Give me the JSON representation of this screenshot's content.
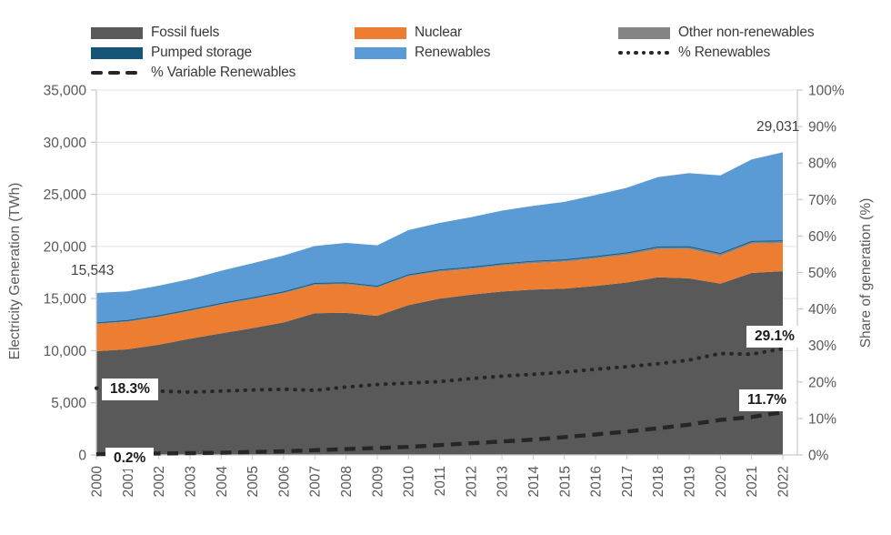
{
  "legend": {
    "items": [
      {
        "label": "Fossil fuels",
        "swatch": "fill",
        "color": "#595959"
      },
      {
        "label": "Nuclear",
        "swatch": "fill",
        "color": "#ED7D31"
      },
      {
        "label": "Other non-renewables",
        "swatch": "fill",
        "color": "#848484"
      },
      {
        "label": "Pumped storage",
        "swatch": "fill",
        "color": "#155678"
      },
      {
        "label": "Renewables",
        "swatch": "fill",
        "color": "#5B9BD5"
      },
      {
        "label": "% Renewables",
        "swatch": "dotted",
        "color": "#262626"
      },
      {
        "label": "% Variable Renewables",
        "swatch": "dashed",
        "color": "#262626"
      }
    ]
  },
  "chart_data": {
    "type": "area",
    "stacked": true,
    "unit": "TWh",
    "categories": [
      "2000",
      "2001",
      "2002",
      "2003",
      "2004",
      "2005",
      "2006",
      "2007",
      "2008",
      "2009",
      "2010",
      "2011",
      "2012",
      "2013",
      "2014",
      "2015",
      "2016",
      "2017",
      "2018",
      "2019",
      "2020",
      "2021",
      "2022"
    ],
    "series": [
      {
        "name": "Fossil fuels",
        "color": "#595959",
        "values": [
          9953,
          10131,
          10569,
          11158,
          11662,
          12165,
          12708,
          13589,
          13632,
          13342,
          14367,
          14993,
          15367,
          15675,
          15859,
          15957,
          16216,
          16540,
          17036,
          16945,
          16428,
          17454,
          17629
        ]
      },
      {
        "name": "Nuclear",
        "color": "#ED7D31",
        "values": [
          2591,
          2637,
          2661,
          2635,
          2740,
          2768,
          2791,
          2719,
          2731,
          2697,
          2756,
          2584,
          2461,
          2478,
          2535,
          2571,
          2612,
          2639,
          2701,
          2796,
          2676,
          2800,
          2679
        ]
      },
      {
        "name": "Other non-renewables",
        "color": "#848484",
        "values": [
          95,
          98,
          100,
          105,
          108,
          112,
          115,
          118,
          120,
          122,
          128,
          132,
          138,
          145,
          150,
          155,
          160,
          165,
          172,
          178,
          180,
          185,
          190
        ]
      },
      {
        "name": "Pumped storage",
        "color": "#155678",
        "values": [
          60,
          61,
          62,
          63,
          64,
          65,
          66,
          67,
          68,
          69,
          70,
          72,
          74,
          75,
          76,
          78,
          79,
          80,
          81,
          82,
          82,
          84,
          85
        ]
      },
      {
        "name": "Renewables",
        "color": "#5B9BD5",
        "values": [
          2844,
          2761,
          2841,
          2900,
          3091,
          3272,
          3442,
          3547,
          3782,
          3881,
          4249,
          4473,
          4766,
          5062,
          5282,
          5510,
          5857,
          6201,
          6663,
          7027,
          7457,
          7823,
          8448
        ]
      }
    ],
    "line_series": [
      {
        "name": "% Renewables",
        "style": "dotted",
        "color": "#262626",
        "axis": "right",
        "values": [
          18.3,
          17.6,
          17.5,
          17.2,
          17.5,
          17.8,
          18.0,
          17.7,
          18.6,
          19.3,
          19.7,
          20.1,
          20.9,
          21.6,
          22.1,
          22.7,
          23.5,
          24.2,
          25.0,
          26.0,
          27.8,
          27.6,
          29.1
        ]
      },
      {
        "name": "% Variable Renewables",
        "style": "dashed",
        "color": "#262626",
        "axis": "right",
        "values": [
          0.2,
          0.3,
          0.4,
          0.5,
          0.6,
          0.8,
          1.0,
          1.3,
          1.6,
          1.9,
          2.2,
          2.7,
          3.2,
          3.7,
          4.2,
          4.9,
          5.6,
          6.4,
          7.3,
          8.3,
          9.6,
          10.4,
          11.7
        ]
      }
    ],
    "left_axis": {
      "label": "Electricity Generation (TWh)",
      "min": 0,
      "max": 35000,
      "step": 5000,
      "tick_labels": [
        "0",
        "5,000",
        "10,000",
        "15,000",
        "20,000",
        "25,000",
        "30,000",
        "35,000"
      ]
    },
    "right_axis": {
      "label": "Share of generation (%)",
      "min": 0,
      "max": 100,
      "step": 10,
      "tick_labels": [
        "0%",
        "10%",
        "20%",
        "30%",
        "40%",
        "50%",
        "60%",
        "70%",
        "80%",
        "90%",
        "100%"
      ]
    },
    "annotations": {
      "start_total": {
        "text": "15,543"
      },
      "end_total": {
        "text": "29,031"
      },
      "ren_start": {
        "text": "18.3%"
      },
      "ren_end": {
        "text": "29.1%"
      },
      "var_start": {
        "text": "0.2%"
      },
      "var_end": {
        "text": "11.7%"
      }
    },
    "colors": {
      "grid": "#E4E4E4",
      "axis_line": "#C9C9C9",
      "tick_text": "#595959",
      "line_black": "#262626"
    }
  }
}
